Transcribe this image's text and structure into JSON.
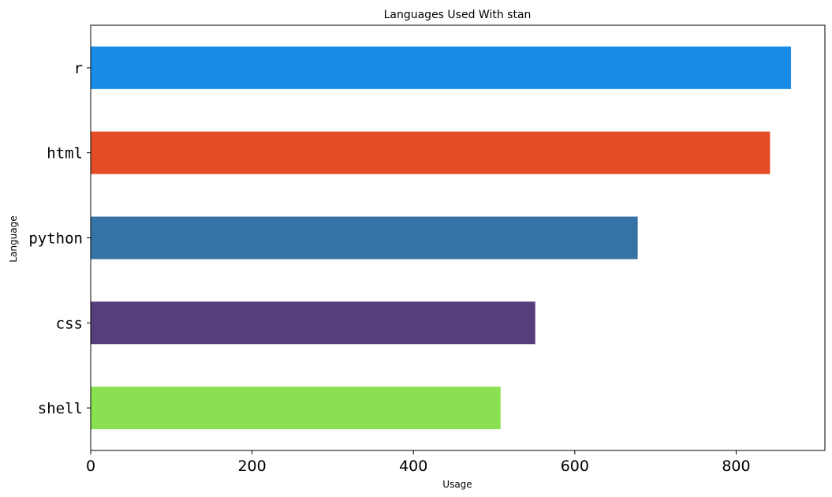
{
  "chart_data": {
    "type": "bar",
    "orientation": "horizontal",
    "title": "Languages Used With stan",
    "xlabel": "Usage",
    "ylabel": "Language",
    "categories": [
      "r",
      "html",
      "python",
      "css",
      "shell"
    ],
    "values": [
      868,
      842,
      678,
      551,
      508
    ],
    "colors": [
      "#198ce7",
      "#e34c26",
      "#3572a5",
      "#563d7c",
      "#89e051"
    ],
    "xlim": [
      0,
      910
    ],
    "xticks": [
      0,
      200,
      400,
      600,
      800
    ],
    "grid": false,
    "legend": "none"
  }
}
